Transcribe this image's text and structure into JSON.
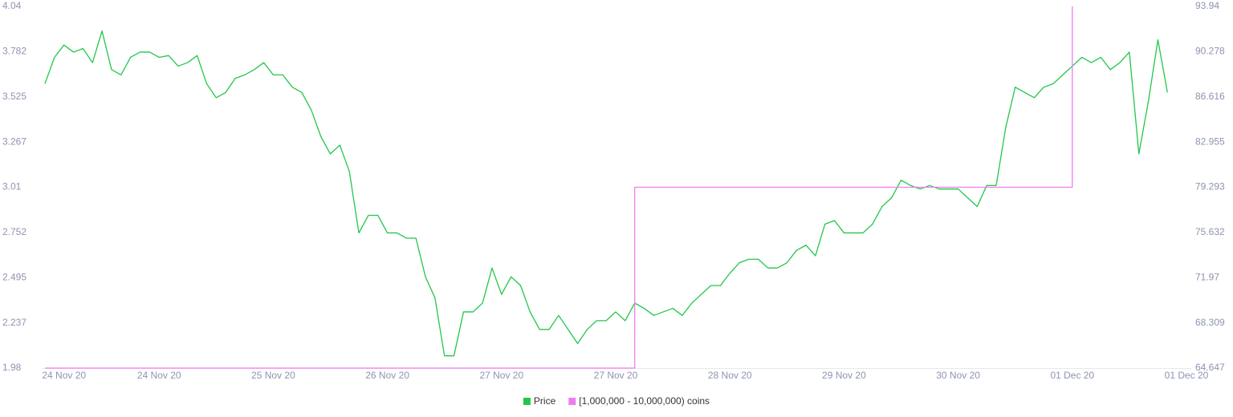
{
  "chart_data": {
    "type": "line",
    "categories": [
      null,
      null,
      "24 Nov 20",
      null,
      null,
      null,
      null,
      null,
      null,
      null,
      null,
      null,
      "24 Nov 20",
      null,
      null,
      null,
      null,
      null,
      null,
      null,
      null,
      null,
      null,
      null,
      "25 Nov 20",
      null,
      null,
      null,
      null,
      null,
      null,
      null,
      null,
      null,
      null,
      null,
      "26 Nov 20",
      null,
      null,
      null,
      null,
      null,
      null,
      null,
      null,
      null,
      null,
      null,
      "27 Nov 20",
      null,
      null,
      null,
      null,
      null,
      null,
      null,
      null,
      null,
      null,
      null,
      "27 Nov 20",
      null,
      null,
      null,
      null,
      null,
      null,
      null,
      null,
      null,
      null,
      null,
      "28 Nov 20",
      null,
      null,
      null,
      null,
      null,
      null,
      null,
      null,
      null,
      null,
      null,
      "29 Nov 20",
      null,
      null,
      null,
      null,
      null,
      null,
      null,
      null,
      null,
      null,
      null,
      "30 Nov 20",
      null,
      null,
      null,
      null,
      null,
      null,
      null,
      null,
      null,
      null,
      null,
      "01 Dec 20",
      null,
      null,
      null,
      null,
      null,
      null,
      null,
      null,
      null,
      null,
      null,
      "01 Dec 20"
    ],
    "series": [
      {
        "name": "Price",
        "color": "#22c74a",
        "values": [
          3.6,
          3.75,
          3.82,
          3.78,
          3.8,
          3.72,
          3.9,
          3.68,
          3.65,
          3.75,
          3.78,
          3.78,
          3.75,
          3.76,
          3.7,
          3.72,
          3.76,
          3.6,
          3.52,
          3.55,
          3.63,
          3.65,
          3.68,
          3.72,
          3.65,
          3.65,
          3.58,
          3.55,
          3.45,
          3.3,
          3.2,
          3.25,
          3.1,
          2.75,
          2.85,
          2.85,
          2.75,
          2.75,
          2.72,
          2.72,
          2.5,
          2.38,
          2.05,
          2.05,
          2.3,
          2.3,
          2.35,
          2.55,
          2.4,
          2.5,
          2.45,
          2.3,
          2.2,
          2.2,
          2.28,
          2.2,
          2.12,
          2.2,
          2.25,
          2.25,
          2.3,
          2.25,
          2.35,
          2.32,
          2.28,
          2.3,
          2.32,
          2.28,
          2.35,
          2.4,
          2.45,
          2.45,
          2.52,
          2.58,
          2.6,
          2.6,
          2.55,
          2.55,
          2.58,
          2.65,
          2.68,
          2.62,
          2.8,
          2.82,
          2.75,
          2.75,
          2.75,
          2.8,
          2.9,
          2.95,
          3.05,
          3.02,
          3.0,
          3.02,
          3.0,
          3.0,
          3.0,
          2.95,
          2.9,
          3.02,
          3.02,
          3.35,
          3.58,
          3.55,
          3.52,
          3.58,
          3.6,
          3.65,
          3.7,
          3.75,
          3.72,
          3.75,
          3.68,
          3.72,
          3.78,
          3.2,
          3.5,
          3.85,
          3.55,
          null,
          null
        ]
      },
      {
        "name": "[1,000,000 - 10,000,000) coins",
        "color": "#f07cf0",
        "axis": "y2",
        "step": true,
        "values": [
          64.647,
          64.647,
          64.647,
          64.647,
          64.647,
          64.647,
          64.647,
          64.647,
          64.647,
          64.647,
          64.647,
          64.647,
          64.647,
          64.647,
          64.647,
          64.647,
          64.647,
          64.647,
          64.647,
          64.647,
          64.647,
          64.647,
          64.647,
          64.647,
          64.647,
          64.647,
          64.647,
          64.647,
          64.647,
          64.647,
          64.647,
          64.647,
          64.647,
          64.647,
          64.647,
          64.647,
          64.647,
          64.647,
          64.647,
          64.647,
          64.647,
          64.647,
          64.647,
          64.647,
          64.647,
          64.647,
          64.647,
          64.647,
          64.647,
          64.647,
          64.647,
          64.647,
          64.647,
          64.647,
          64.647,
          64.647,
          64.647,
          64.647,
          64.647,
          64.647,
          64.647,
          64.647,
          79.293,
          79.293,
          79.293,
          79.293,
          79.293,
          79.293,
          79.293,
          79.293,
          79.293,
          79.293,
          79.293,
          79.293,
          79.293,
          79.293,
          79.293,
          79.293,
          79.293,
          79.293,
          79.293,
          79.293,
          79.293,
          79.293,
          79.293,
          79.293,
          79.293,
          79.293,
          79.293,
          79.293,
          79.293,
          79.293,
          79.293,
          79.293,
          79.293,
          79.293,
          79.293,
          79.293,
          79.293,
          79.293,
          79.293,
          79.293,
          79.293,
          79.293,
          79.293,
          79.293,
          79.293,
          79.293,
          93.94,
          null,
          null,
          null,
          null,
          null,
          null,
          null,
          null,
          null,
          null,
          null,
          null
        ]
      }
    ],
    "ylim": [
      1.98,
      4.04
    ],
    "yticks": [
      1.98,
      2.237,
      2.495,
      2.752,
      3.01,
      3.267,
      3.525,
      3.782,
      4.04
    ],
    "y2lim": [
      64.647,
      93.94
    ],
    "y2ticks": [
      64.647,
      68.309,
      71.97,
      75.632,
      79.293,
      82.955,
      86.616,
      90.278,
      93.94
    ],
    "legend": "bottom"
  }
}
